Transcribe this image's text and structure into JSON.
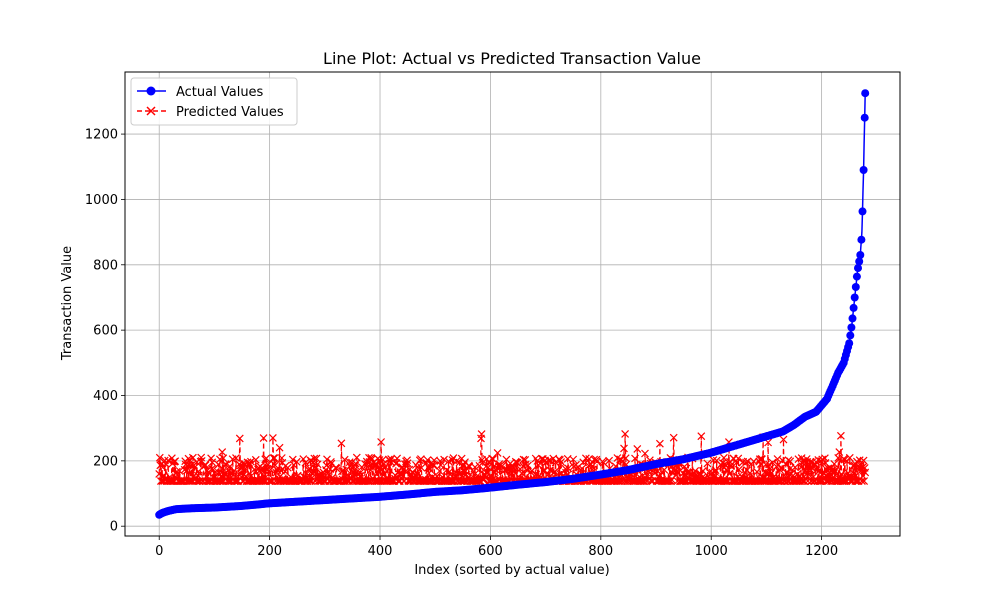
{
  "chart_data": {
    "type": "line",
    "title": "Line Plot: Actual vs Predicted Transaction Value",
    "xlabel": "Index (sorted by actual value)",
    "ylabel": "Transaction Value",
    "xlim": [
      -62,
      1342
    ],
    "ylim": [
      -30,
      1390
    ],
    "x_ticks": [
      0,
      200,
      400,
      600,
      800,
      1000,
      1200
    ],
    "y_ticks": [
      0,
      200,
      400,
      600,
      800,
      1000,
      1200
    ],
    "grid": true,
    "legend_position": "top-left",
    "n_points": 1280,
    "series": [
      {
        "name": "Actual Values",
        "color": "#0000ff",
        "marker": "circle",
        "linestyle": "solid",
        "curve_x": [
          0,
          5,
          15,
          30,
          60,
          100,
          150,
          200,
          250,
          300,
          350,
          400,
          450,
          500,
          550,
          600,
          650,
          700,
          750,
          800,
          850,
          900,
          950,
          1000,
          1050,
          1100,
          1130,
          1150,
          1170,
          1190,
          1200,
          1210,
          1220,
          1230,
          1240,
          1250,
          1255,
          1260,
          1265,
          1270,
          1273,
          1276,
          1278,
          1279
        ],
        "curve_y": [
          35,
          40,
          46,
          52,
          55,
          57,
          62,
          70,
          75,
          80,
          85,
          90,
          97,
          105,
          110,
          118,
          127,
          135,
          145,
          158,
          172,
          190,
          205,
          225,
          250,
          275,
          290,
          310,
          335,
          350,
          370,
          390,
          430,
          470,
          500,
          560,
          620,
          700,
          780,
          830,
          900,
          1090,
          1250,
          1325
        ]
      },
      {
        "name": "Predicted Values",
        "color": "#ff0000",
        "marker": "x",
        "linestyle": "dashed",
        "baseline": 138,
        "typical_range": [
          138,
          210
        ],
        "max_spike": 285
      }
    ]
  }
}
